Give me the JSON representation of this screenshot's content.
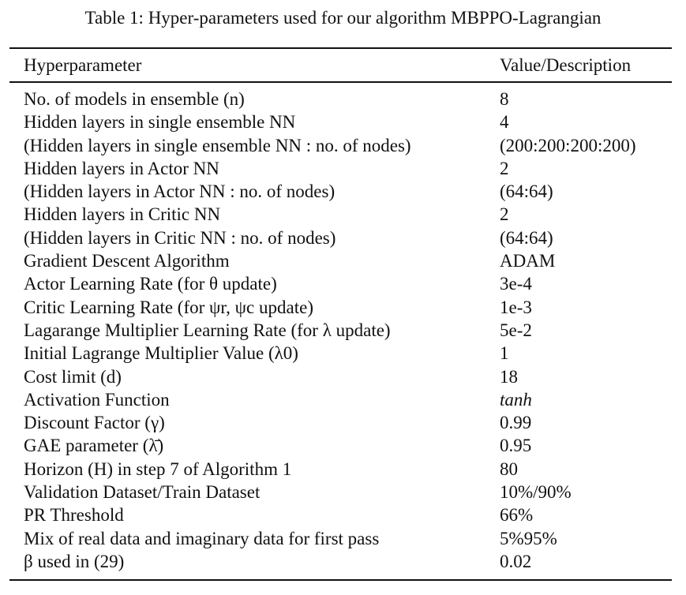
{
  "caption": "Table 1: Hyper-parameters used for our algorithm MBPPO-Lagrangian",
  "headers": {
    "param": "Hyperparameter",
    "value": "Value/Description"
  },
  "rows": [
    {
      "param": "No. of models in ensemble (n)",
      "value": "8"
    },
    {
      "param": "Hidden layers in single ensemble NN",
      "value": "4"
    },
    {
      "param": "(Hidden layers in single ensemble NN : no. of nodes)",
      "value": "(200:200:200:200)"
    },
    {
      "param": "Hidden layers in Actor NN",
      "value": "2"
    },
    {
      "param": "(Hidden layers in Actor NN : no. of nodes)",
      "value": "(64:64)"
    },
    {
      "param": "Hidden layers in Critic NN",
      "value": "2"
    },
    {
      "param": "(Hidden layers in Critic NN : no. of nodes)",
      "value": "(64:64)"
    },
    {
      "param": "Gradient Descent Algorithm",
      "value": "ADAM"
    },
    {
      "param": "Actor Learning Rate (for θ update)",
      "value": "3e-4"
    },
    {
      "param": "Critic Learning Rate (for ψr, ψc update)",
      "value": "1e-3"
    },
    {
      "param": "Lagarange Multiplier Learning Rate (for λ update)",
      "value": "5e-2"
    },
    {
      "param": "Initial Lagrange Multiplier Value (λ0)",
      "value": "1"
    },
    {
      "param": "Cost limit (d)",
      "value": "18"
    },
    {
      "param": "Activation Function",
      "value": "tanh"
    },
    {
      "param": "Discount Factor (γ)",
      "value": "0.99"
    },
    {
      "param": "GAE parameter (λ̄)",
      "value": "0.95"
    },
    {
      "param": "Horizon (H) in step 7 of Algorithm 1",
      "value": "80"
    },
    {
      "param": "Validation Dataset/Train Dataset",
      "value": "10%/90%"
    },
    {
      "param": "PR Threshold",
      "value": "66%"
    },
    {
      "param": "Mix of real data and imaginary data for first pass",
      "value": "5%95%"
    },
    {
      "param": "β used in (29)",
      "value": "0.02"
    }
  ]
}
